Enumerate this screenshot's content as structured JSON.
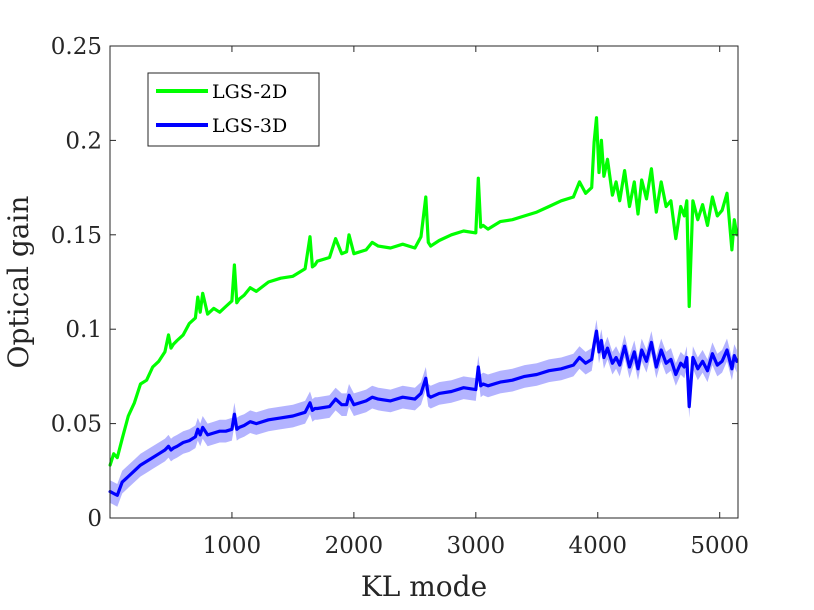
{
  "chart_data": {
    "type": "line",
    "title": "",
    "xlabel": "KL mode",
    "ylabel": "Optical gain",
    "xlim": [
      0,
      5150
    ],
    "ylim": [
      0,
      0.25
    ],
    "xticks": [
      1000,
      2000,
      3000,
      4000,
      5000
    ],
    "xtick_labels": [
      "1000",
      "2000",
      "3000",
      "4000",
      "5000"
    ],
    "yticks": [
      0,
      0.05,
      0.1,
      0.15,
      0.2,
      0.25
    ],
    "ytick_labels": [
      "0",
      "0.05",
      "0.1",
      "0.15",
      "0.2",
      "0.25"
    ],
    "grid": false,
    "legend_position": "top-left",
    "series": [
      {
        "name": "LGS-2D",
        "color": "#00ff00",
        "x": [
          1,
          30,
          60,
          100,
          150,
          200,
          250,
          300,
          350,
          400,
          450,
          480,
          500,
          520,
          550,
          600,
          650,
          700,
          720,
          740,
          760,
          800,
          850,
          900,
          950,
          1000,
          1020,
          1040,
          1060,
          1100,
          1150,
          1200,
          1300,
          1400,
          1500,
          1600,
          1640,
          1660,
          1680,
          1700,
          1800,
          1850,
          1900,
          1940,
          1960,
          2000,
          2100,
          2150,
          2200,
          2300,
          2400,
          2500,
          2550,
          2590,
          2610,
          2630,
          2700,
          2800,
          2900,
          3000,
          3020,
          3040,
          3060,
          3100,
          3200,
          3300,
          3400,
          3500,
          3600,
          3700,
          3800,
          3850,
          3900,
          3950,
          3970,
          3990,
          4010,
          4030,
          4050,
          4080,
          4120,
          4150,
          4180,
          4220,
          4260,
          4300,
          4330,
          4360,
          4400,
          4440,
          4480,
          4520,
          4560,
          4600,
          4640,
          4680,
          4710,
          4730,
          4750,
          4780,
          4820,
          4860,
          4900,
          4940,
          4980,
          5020,
          5060,
          5100,
          5120,
          5140
        ],
        "values": [
          0.028,
          0.034,
          0.032,
          0.042,
          0.054,
          0.061,
          0.071,
          0.073,
          0.08,
          0.083,
          0.088,
          0.097,
          0.09,
          0.092,
          0.094,
          0.097,
          0.103,
          0.106,
          0.117,
          0.109,
          0.119,
          0.108,
          0.111,
          0.109,
          0.112,
          0.115,
          0.134,
          0.114,
          0.116,
          0.118,
          0.122,
          0.12,
          0.125,
          0.127,
          0.128,
          0.132,
          0.149,
          0.133,
          0.134,
          0.136,
          0.138,
          0.148,
          0.14,
          0.141,
          0.15,
          0.14,
          0.142,
          0.146,
          0.144,
          0.143,
          0.145,
          0.143,
          0.149,
          0.17,
          0.146,
          0.144,
          0.147,
          0.15,
          0.152,
          0.151,
          0.18,
          0.154,
          0.155,
          0.153,
          0.157,
          0.158,
          0.16,
          0.162,
          0.165,
          0.168,
          0.17,
          0.178,
          0.172,
          0.175,
          0.199,
          0.212,
          0.183,
          0.2,
          0.181,
          0.19,
          0.171,
          0.178,
          0.168,
          0.184,
          0.165,
          0.178,
          0.161,
          0.179,
          0.169,
          0.185,
          0.162,
          0.178,
          0.165,
          0.168,
          0.148,
          0.165,
          0.16,
          0.168,
          0.112,
          0.168,
          0.158,
          0.166,
          0.155,
          0.17,
          0.16,
          0.163,
          0.172,
          0.142,
          0.158,
          0.15
        ]
      },
      {
        "name": "LGS-3D",
        "color": "#0000ff",
        "band_color": "#9999ff",
        "band_halfwidth": 0.006,
        "x": [
          1,
          30,
          60,
          100,
          150,
          200,
          250,
          300,
          350,
          400,
          450,
          480,
          500,
          520,
          550,
          600,
          650,
          700,
          720,
          740,
          760,
          800,
          850,
          900,
          950,
          1000,
          1020,
          1040,
          1060,
          1100,
          1150,
          1200,
          1300,
          1400,
          1500,
          1600,
          1640,
          1660,
          1680,
          1700,
          1800,
          1850,
          1900,
          1940,
          1960,
          2000,
          2100,
          2150,
          2200,
          2300,
          2400,
          2500,
          2550,
          2590,
          2610,
          2630,
          2700,
          2800,
          2900,
          3000,
          3020,
          3040,
          3060,
          3100,
          3200,
          3300,
          3400,
          3500,
          3600,
          3700,
          3800,
          3850,
          3900,
          3950,
          3970,
          3990,
          4010,
          4030,
          4050,
          4080,
          4120,
          4150,
          4180,
          4220,
          4260,
          4300,
          4330,
          4360,
          4400,
          4440,
          4480,
          4520,
          4560,
          4600,
          4640,
          4680,
          4710,
          4730,
          4750,
          4780,
          4820,
          4860,
          4900,
          4940,
          4980,
          5020,
          5060,
          5100,
          5120,
          5140
        ],
        "values": [
          0.014,
          0.013,
          0.012,
          0.019,
          0.022,
          0.025,
          0.028,
          0.03,
          0.032,
          0.034,
          0.036,
          0.038,
          0.036,
          0.037,
          0.038,
          0.04,
          0.041,
          0.043,
          0.047,
          0.044,
          0.048,
          0.044,
          0.045,
          0.046,
          0.046,
          0.047,
          0.055,
          0.047,
          0.048,
          0.049,
          0.051,
          0.05,
          0.052,
          0.053,
          0.054,
          0.056,
          0.061,
          0.057,
          0.058,
          0.058,
          0.059,
          0.063,
          0.06,
          0.06,
          0.065,
          0.06,
          0.062,
          0.064,
          0.063,
          0.062,
          0.064,
          0.063,
          0.066,
          0.074,
          0.065,
          0.064,
          0.066,
          0.067,
          0.069,
          0.068,
          0.08,
          0.07,
          0.071,
          0.07,
          0.072,
          0.073,
          0.075,
          0.076,
          0.078,
          0.079,
          0.081,
          0.085,
          0.082,
          0.084,
          0.092,
          0.099,
          0.088,
          0.094,
          0.085,
          0.09,
          0.082,
          0.085,
          0.081,
          0.091,
          0.08,
          0.088,
          0.079,
          0.089,
          0.083,
          0.093,
          0.08,
          0.089,
          0.082,
          0.084,
          0.076,
          0.082,
          0.08,
          0.085,
          0.059,
          0.085,
          0.079,
          0.083,
          0.078,
          0.087,
          0.081,
          0.083,
          0.089,
          0.079,
          0.086,
          0.083
        ]
      }
    ]
  }
}
